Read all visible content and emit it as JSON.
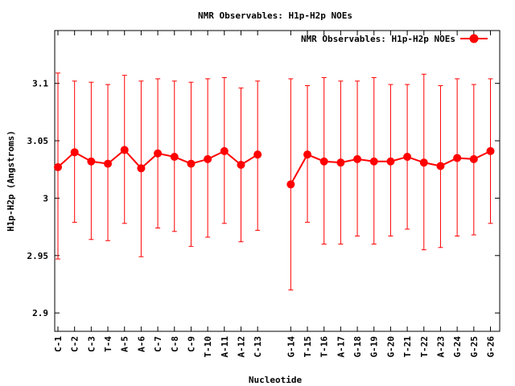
{
  "chart_data": {
    "type": "line",
    "title": "NMR Observables: H1p-H2p NOEs",
    "xlabel": "Nucleotide",
    "ylabel": "H1p-H2p (Angstroms)",
    "ylim": [
      2.884,
      3.146
    ],
    "y_ticks": [
      2.9,
      2.95,
      3,
      3.05,
      3.1
    ],
    "y_tick_labels": [
      "2.9",
      "2.95",
      "3",
      "3.05",
      "3.1"
    ],
    "grid": false,
    "legend_position": "top-right",
    "colors": {
      "series": "#ff0000",
      "axis": "#000000"
    },
    "categories": [
      "C-1",
      "C-2",
      "C-3",
      "T-4",
      "A-5",
      "A-6",
      "C-7",
      "C-8",
      "C-9",
      "T-10",
      "A-11",
      "A-12",
      "C-13",
      "G-14",
      "T-15",
      "T-16",
      "A-17",
      "G-18",
      "G-19",
      "G-20",
      "T-21",
      "T-22",
      "A-23",
      "G-24",
      "G-25",
      "G-26"
    ],
    "gap_after_index": 12,
    "series": [
      {
        "name": "NMR Observables: H1p-H2p NOEs",
        "values": [
          3.027,
          3.04,
          3.032,
          3.03,
          3.042,
          3.026,
          3.039,
          3.036,
          3.03,
          3.034,
          3.041,
          3.029,
          3.038,
          3.012,
          3.038,
          3.032,
          3.031,
          3.034,
          3.032,
          3.032,
          3.036,
          3.031,
          3.028,
          3.035,
          3.034,
          3.041
        ],
        "err_high": [
          3.109,
          3.102,
          3.101,
          3.099,
          3.107,
          3.102,
          3.104,
          3.102,
          3.101,
          3.104,
          3.105,
          3.096,
          3.102,
          3.104,
          3.098,
          3.105,
          3.102,
          3.102,
          3.105,
          3.099,
          3.099,
          3.108,
          3.098,
          3.104,
          3.099,
          3.104
        ],
        "err_low": [
          2.947,
          2.979,
          2.964,
          2.963,
          2.978,
          2.949,
          2.974,
          2.971,
          2.958,
          2.966,
          2.978,
          2.962,
          2.972,
          2.92,
          2.979,
          2.96,
          2.96,
          2.967,
          2.96,
          2.967,
          2.973,
          2.955,
          2.957,
          2.967,
          2.968,
          2.978
        ]
      }
    ]
  }
}
